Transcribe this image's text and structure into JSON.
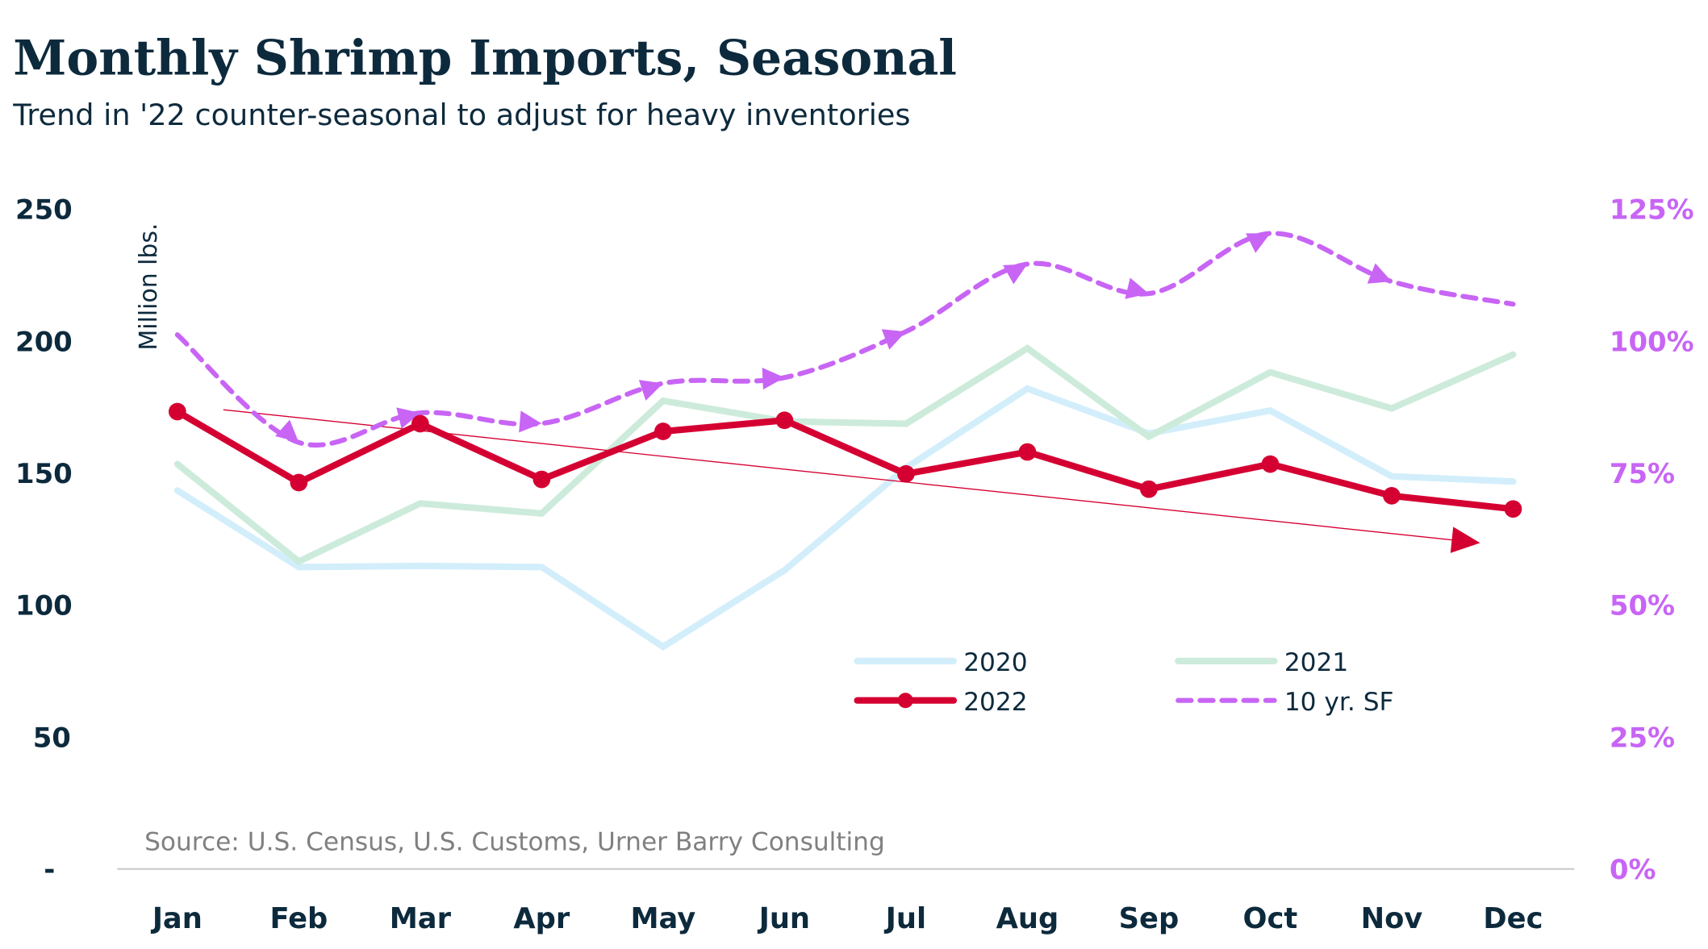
{
  "chart_data": {
    "type": "line",
    "title": "Monthly Shrimp Imports, Seasonal",
    "subtitle": "Trend in '22 counter-seasonal to adjust for heavy inventories",
    "ylabel": "Million lbs.",
    "source": "Source: U.S. Census, U.S. Customs, Urner Barry Consulting",
    "categories": [
      "Jan",
      "Feb",
      "Mar",
      "Apr",
      "May",
      "Jun",
      "Jul",
      "Aug",
      "Sep",
      "Oct",
      "Nov",
      "Dec"
    ],
    "ylim": [
      0,
      250
    ],
    "y_ticks": [
      "-",
      "50",
      "100",
      "150",
      "200",
      "250"
    ],
    "y_tick_values": [
      0,
      50,
      100,
      150,
      200,
      250
    ],
    "y2lim": [
      0,
      125
    ],
    "y2_ticks": [
      "0%",
      "25%",
      "50%",
      "75%",
      "100%",
      "125%"
    ],
    "y2_tick_values": [
      0,
      25,
      50,
      75,
      100,
      125
    ],
    "grid": false,
    "legend_position": "bottom-center",
    "series": [
      {
        "name": "2020",
        "axis": "left",
        "color": "#d3eefb",
        "style": "solid",
        "values": [
          143.4,
          114.4,
          114.8,
          114.4,
          84.2,
          113.2,
          152,
          182,
          165,
          173.7,
          148.8,
          146.8
        ]
      },
      {
        "name": "2021",
        "axis": "left",
        "color": "#cdebdb",
        "style": "solid",
        "values": [
          153.4,
          116.5,
          138.5,
          134.7,
          177.4,
          169.6,
          168.7,
          197.3,
          163.8,
          188.2,
          174.5,
          194.9
        ]
      },
      {
        "name": "2022",
        "axis": "left",
        "color": "#d50032",
        "style": "markers",
        "values": [
          173.3,
          146.4,
          168.7,
          147.6,
          165.8,
          170,
          149.7,
          158,
          143.9,
          153.4,
          141.4,
          136.4
        ]
      },
      {
        "name": "10 yr. SF",
        "axis": "right",
        "color": "#c865f5",
        "style": "dashed",
        "values": [
          101.2,
          80.8,
          86.4,
          84.4,
          92,
          93.1,
          101.8,
          114.6,
          109,
          120.4,
          111.3,
          107
        ]
      }
    ],
    "trendline": {
      "series": "2022",
      "color": "#d50032",
      "start": {
        "x": "Jan",
        "y": 174
      },
      "end": {
        "x": "Dec",
        "y": 124.5
      }
    }
  }
}
